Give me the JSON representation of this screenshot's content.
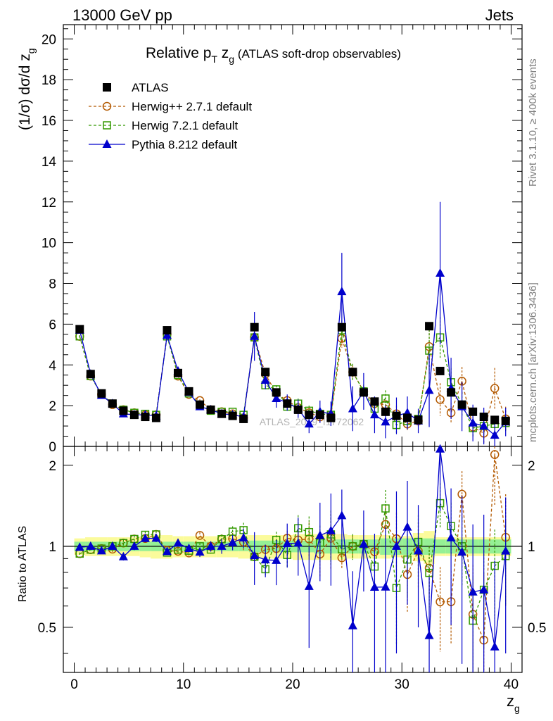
{
  "header": {
    "left": "13000 GeV pp",
    "right": "Jets"
  },
  "side": {
    "rivet": "Rivet 3.1.10, ≥ 400k events",
    "mcplots": "mcplots.cern.ch [arXiv:1306.3436]"
  },
  "chart_data": {
    "type": "line",
    "title_main": "Relative p",
    "title_sub_T": "T",
    "title_mid": " z",
    "title_sub_g": "g",
    "title_rest": " (ATLAS soft-drop observables)",
    "xlabel": "z",
    "xlabel_sub": "g",
    "ylabel_main": "(1/σ) dσ/d z",
    "ylabel_sub": "g",
    "ratio_ylabel": "Ratio to ATLAS",
    "watermark": "ATLAS_2019_I1772062",
    "xlim": [
      -1,
      41
    ],
    "ylim_main": [
      0,
      20.7
    ],
    "ylim_ratio": [
      0.34,
      2.35
    ],
    "xticks": [
      0,
      10,
      20,
      30,
      40
    ],
    "xtick_labels": [
      "0",
      "10",
      "20",
      "30",
      "40"
    ],
    "yticks_main": [
      0,
      2,
      4,
      6,
      8,
      10,
      12,
      14,
      16,
      18,
      20
    ],
    "ytick_labels_main": [
      "0",
      "2",
      "4",
      "6",
      "8",
      "10",
      "12",
      "14",
      "16",
      "18",
      "20"
    ],
    "yticks_ratio": [
      0.5,
      1,
      2
    ],
    "ytick_labels_ratio": [
      "0.5",
      "1",
      "2"
    ],
    "x": [
      0.5,
      1.5,
      2.5,
      3.5,
      4.5,
      5.5,
      6.5,
      7.5,
      8.5,
      9.5,
      10.5,
      11.5,
      12.5,
      13.5,
      14.5,
      15.5,
      16.5,
      17.5,
      18.5,
      19.5,
      20.5,
      21.5,
      22.5,
      23.5,
      24.5,
      25.5,
      26.5,
      27.5,
      28.5,
      29.5,
      30.5,
      31.5,
      32.5,
      33.5,
      34.5,
      35.5,
      36.5,
      37.5,
      38.5,
      39.5
    ],
    "band_inner": [
      0.04,
      0.04,
      0.04,
      0.04,
      0.04,
      0.04,
      0.04,
      0.04,
      0.04,
      0.04,
      0.04,
      0.04,
      0.04,
      0.04,
      0.04,
      0.04,
      0.05,
      0.05,
      0.05,
      0.05,
      0.05,
      0.05,
      0.06,
      0.06,
      0.06,
      0.06,
      0.06,
      0.06,
      0.07,
      0.07,
      0.07,
      0.07,
      0.07,
      0.06,
      0.06,
      0.06,
      0.06,
      0.06,
      0.06,
      0.06
    ],
    "band_outer": [
      0.07,
      0.08,
      0.08,
      0.08,
      0.08,
      0.08,
      0.09,
      0.1,
      0.1,
      0.09,
      0.09,
      0.09,
      0.09,
      0.09,
      0.09,
      0.1,
      0.1,
      0.1,
      0.1,
      0.1,
      0.11,
      0.11,
      0.11,
      0.11,
      0.11,
      0.1,
      0.1,
      0.1,
      0.1,
      0.09,
      0.09,
      0.12,
      0.14,
      0.08,
      0.08,
      0.08,
      0.08,
      0.08,
      0.08,
      0.08
    ],
    "series": [
      {
        "name": "ATLAS",
        "color": "#000000",
        "marker": "square-filled",
        "line": "none",
        "values": [
          5.75,
          3.55,
          2.6,
          2.1,
          1.75,
          1.55,
          1.45,
          1.4,
          5.7,
          3.6,
          2.7,
          2.05,
          1.8,
          1.6,
          1.5,
          1.35,
          5.85,
          3.65,
          2.65,
          2.1,
          1.8,
          1.55,
          1.55,
          1.4,
          5.85,
          3.65,
          2.65,
          2.2,
          1.7,
          1.5,
          1.4,
          1.3,
          5.9,
          3.7,
          2.65,
          2.05,
          1.7,
          1.45,
          1.3,
          1.25
        ],
        "errors": [
          0.1,
          0.08,
          0.06,
          0.05,
          0.05,
          0.05,
          0.05,
          0.05,
          0.1,
          0.08,
          0.06,
          0.05,
          0.05,
          0.05,
          0.05,
          0.05,
          0.1,
          0.08,
          0.06,
          0.05,
          0.05,
          0.05,
          0.05,
          0.05,
          0.1,
          0.08,
          0.06,
          0.05,
          0.05,
          0.05,
          0.05,
          0.05,
          0.1,
          0.08,
          0.06,
          0.05,
          0.05,
          0.05,
          0.05,
          0.05
        ]
      },
      {
        "name": "Herwig++ 2.7.1 default",
        "color": "#b35900",
        "marker": "circle-open",
        "line": "dashed",
        "values": [
          5.4,
          3.45,
          2.55,
          2.05,
          1.8,
          1.65,
          1.55,
          1.55,
          5.5,
          3.45,
          2.55,
          2.25,
          1.8,
          1.7,
          1.6,
          1.4,
          5.35,
          3.55,
          2.6,
          2.25,
          1.9,
          1.65,
          1.45,
          1.5,
          5.3,
          3.65,
          2.7,
          2.1,
          2.05,
          1.6,
          1.1,
          1.25,
          4.9,
          2.3,
          1.65,
          3.2,
          0.95,
          0.65,
          2.85,
          1.35
        ],
        "errors": [
          0.05,
          0.05,
          0.05,
          0.05,
          0.05,
          0.05,
          0.05,
          0.05,
          0.1,
          0.08,
          0.06,
          0.06,
          0.06,
          0.07,
          0.08,
          0.1,
          0.15,
          0.15,
          0.15,
          0.15,
          0.2,
          0.25,
          0.25,
          0.35,
          0.45,
          0.35,
          0.3,
          0.3,
          0.35,
          0.4,
          0.3,
          0.35,
          1.0,
          0.8,
          0.5,
          0.7,
          0.5,
          0.5,
          1.0,
          0.6
        ]
      },
      {
        "name": "Herwig 7.2.1 default",
        "color": "#339900",
        "marker": "square-open",
        "line": "dashed",
        "values": [
          5.4,
          3.45,
          2.55,
          2.1,
          1.8,
          1.65,
          1.6,
          1.55,
          5.4,
          3.5,
          2.6,
          2.05,
          1.75,
          1.7,
          1.7,
          1.55,
          5.35,
          3.0,
          2.8,
          1.95,
          2.1,
          1.75,
          1.6,
          1.55,
          5.7,
          3.65,
          2.7,
          1.85,
          2.35,
          1.05,
          1.25,
          1.35,
          4.7,
          5.35,
          3.15,
          2.05,
          0.9,
          1.0,
          1.1,
          1.15
        ],
        "errors": [
          0.05,
          0.05,
          0.05,
          0.05,
          0.05,
          0.05,
          0.05,
          0.05,
          0.1,
          0.08,
          0.06,
          0.06,
          0.06,
          0.07,
          0.08,
          0.1,
          0.15,
          0.15,
          0.2,
          0.2,
          0.25,
          0.25,
          0.25,
          0.35,
          0.5,
          0.4,
          0.35,
          0.35,
          0.4,
          0.4,
          0.35,
          0.35,
          1.2,
          1.0,
          0.7,
          0.6,
          0.4,
          0.4,
          0.4,
          0.4
        ]
      },
      {
        "name": "Pythia 8.212 default",
        "color": "#0000cc",
        "marker": "triangle-filled",
        "line": "solid",
        "values": [
          5.7,
          3.55,
          2.5,
          2.1,
          1.6,
          1.55,
          1.55,
          1.5,
          5.45,
          3.7,
          2.65,
          1.95,
          1.8,
          1.6,
          1.55,
          1.45,
          5.4,
          3.25,
          2.35,
          2.15,
          1.85,
          1.1,
          1.7,
          1.6,
          7.6,
          1.85,
          2.7,
          1.55,
          1.2,
          1.5,
          1.65,
          1.25,
          2.75,
          8.5,
          2.85,
          1.95,
          1.15,
          1.0,
          0.55,
          1.2
        ],
        "errors": [
          0.05,
          0.05,
          0.05,
          0.05,
          0.05,
          0.05,
          0.05,
          0.05,
          0.15,
          0.1,
          0.08,
          0.08,
          0.08,
          0.1,
          0.1,
          0.12,
          1.2,
          0.45,
          0.45,
          0.4,
          0.45,
          0.45,
          0.55,
          0.6,
          1.9,
          1.1,
          0.9,
          0.9,
          0.8,
          0.9,
          0.8,
          0.6,
          1.8,
          3.5,
          1.5,
          1.2,
          0.9,
          0.9,
          0.6,
          0.7
        ]
      }
    ]
  }
}
